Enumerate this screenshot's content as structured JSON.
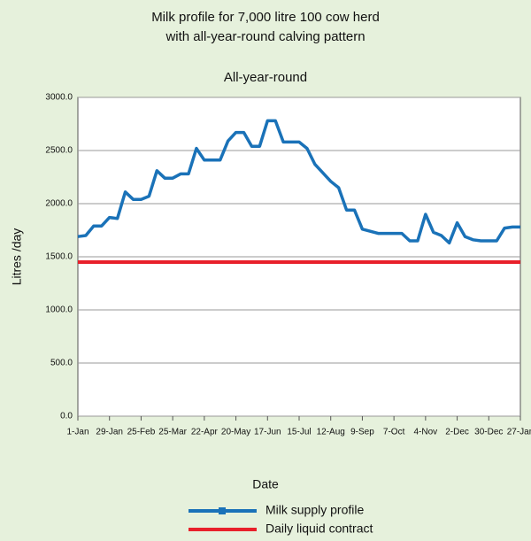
{
  "chart_data": {
    "type": "line",
    "title": "Milk profile for 7,000 litre 100 cow herd",
    "title_line2": "with all-year-round calving pattern",
    "subtitle": "All-year-round",
    "xlabel": "Date",
    "ylabel": "Litres /day",
    "categories": [
      "1-Jan",
      null,
      null,
      null,
      "29-Jan",
      null,
      null,
      null,
      "25-Feb",
      null,
      null,
      null,
      "25-Mar",
      null,
      null,
      null,
      "22-Apr",
      null,
      null,
      null,
      "20-May",
      null,
      null,
      null,
      "17-Jun",
      null,
      null,
      null,
      "15-Jul",
      null,
      null,
      null,
      "12-Aug",
      null,
      null,
      null,
      "9-Sep",
      null,
      null,
      null,
      "7-Oct",
      null,
      null,
      null,
      "4-Nov",
      null,
      null,
      null,
      "2-Dec",
      null,
      null,
      null,
      "30-Dec",
      null,
      null,
      null,
      "27-Jan"
    ],
    "series": [
      {
        "name": "Milk supply profile",
        "color": "#1a72b8",
        "values": [
          1690,
          1700,
          1790,
          1790,
          1870,
          1860,
          2110,
          2040,
          2040,
          2070,
          2310,
          2240,
          2240,
          2280,
          2280,
          2520,
          2410,
          2410,
          2410,
          2590,
          2670,
          2670,
          2540,
          2540,
          2780,
          2780,
          2580,
          2580,
          2580,
          2520,
          2370,
          2290,
          2210,
          2150,
          1940,
          1940,
          1760,
          1740,
          1720,
          1720,
          1720,
          1720,
          1650,
          1650,
          1900,
          1730,
          1700,
          1630,
          1820,
          1690,
          1660,
          1650,
          1650,
          1650,
          1770,
          1780,
          1780
        ]
      },
      {
        "name": "Daily liquid contract",
        "color": "#e8202a",
        "values": [
          1450,
          1450,
          1450,
          1450,
          1450,
          1450,
          1450,
          1450,
          1450,
          1450,
          1450,
          1450,
          1450,
          1450,
          1450,
          1450,
          1450,
          1450,
          1450,
          1450,
          1450,
          1450,
          1450,
          1450,
          1450,
          1450,
          1450,
          1450,
          1450,
          1450,
          1450,
          1450,
          1450,
          1450,
          1450,
          1450,
          1450,
          1450,
          1450,
          1450,
          1450,
          1450,
          1450,
          1450,
          1450,
          1450,
          1450,
          1450,
          1450,
          1450,
          1450,
          1450,
          1450,
          1450,
          1450,
          1450,
          1450
        ]
      }
    ],
    "ylim": [
      0,
      3000
    ],
    "yticks": [
      {
        "value": 0,
        "label": "0.0"
      },
      {
        "value": 500,
        "label": "500.0"
      },
      {
        "value": 1000,
        "label": "1000.0"
      },
      {
        "value": 1500,
        "label": "1500.0"
      },
      {
        "value": 2000,
        "label": "2000.0"
      },
      {
        "value": 2500,
        "label": "2500.0"
      },
      {
        "value": 3000,
        "label": "3000.0"
      }
    ],
    "grid": true,
    "legend": "bottom"
  }
}
